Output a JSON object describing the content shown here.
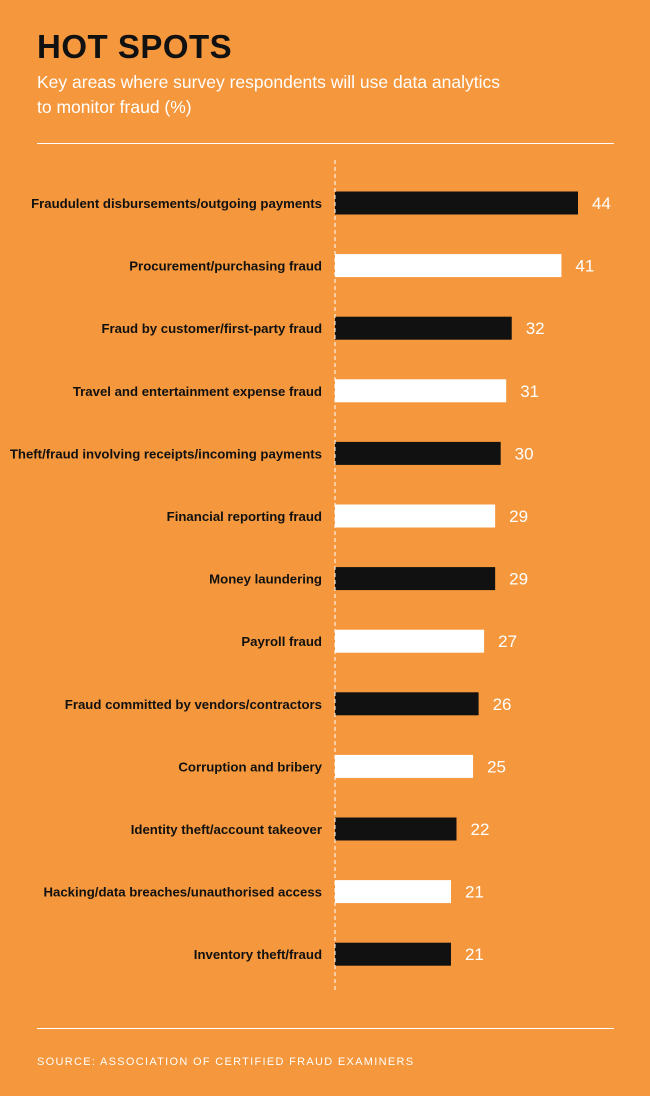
{
  "header": {
    "title": "HOT SPOTS",
    "subtitle": "Key areas where survey respondents will use data analytics to monitor fraud (%)"
  },
  "footer": {
    "source": "SOURCE: ASSOCIATION OF CERTIFIED FRAUD EXAMINERS"
  },
  "colors": {
    "background": "#F5973C",
    "bar_dark": "#111111",
    "bar_light": "#FFFFFF",
    "axis": "#FFFFFF"
  },
  "chart_data": {
    "type": "bar",
    "orientation": "horizontal",
    "title": "HOT SPOTS",
    "subtitle": "Key areas where survey respondents will use data analytics to monitor fraud (%)",
    "categories": [
      "Fraudulent disbursements/outgoing payments",
      "Procurement/purchasing fraud",
      "Fraud by customer/first-party fraud",
      "Travel and entertainment expense fraud",
      "Theft/fraud involving receipts/incoming payments",
      "Financial reporting fraud",
      "Money laundering",
      "Payroll fraud",
      "Fraud committed by vendors/contractors",
      "Corruption and bribery",
      "Identity theft/account takeover",
      "Hacking/data breaches/unauthorised access",
      "Inventory theft/fraud"
    ],
    "values": [
      44,
      41,
      32,
      31,
      30,
      29,
      29,
      27,
      26,
      25,
      22,
      21,
      21
    ],
    "bar_colors": [
      "dark",
      "light",
      "dark",
      "light",
      "dark",
      "light",
      "dark",
      "light",
      "dark",
      "light",
      "dark",
      "light",
      "dark"
    ],
    "xlim": [
      0,
      44
    ],
    "data_labels": true,
    "grid": false,
    "legend": "none"
  }
}
